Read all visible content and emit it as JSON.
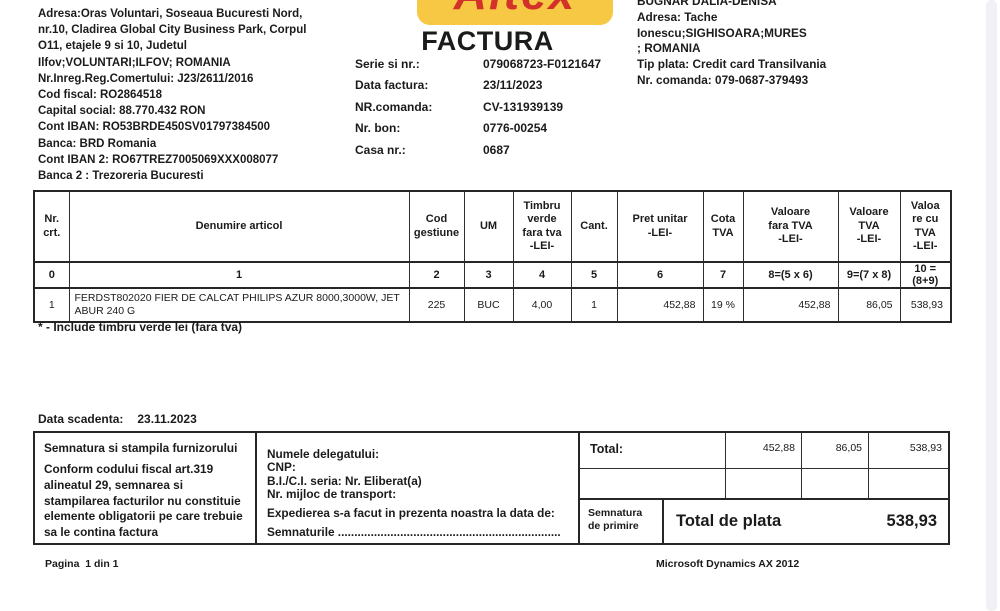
{
  "colors": {
    "logo_bg": "#F7C844",
    "logo_text": "#D23229",
    "scrollbar": "#f0f1f4",
    "text": "#1b1b1b",
    "border": "#262626"
  },
  "supplier": {
    "lines": [
      "Adresa:Oras Voluntari, Soseaua Bucuresti Nord,",
      "nr.10, Cladirea Global City Business Park, Corpul",
      "O11, etajele 9 si 10, Judetul",
      "Ilfov;VOLUNTARI;ILFOV; ROMANIA",
      "Nr.Inreg.Reg.Comertului: J23/2611/2016",
      "Cod fiscal: RO2864518",
      "Capital social: 88.770.432 RON",
      "Cont IBAN: RO53BRDE450SV01797384500",
      "Banca: BRD Romania",
      "Cont IBAN 2: RO67TREZ7005069XXX008077",
      "Banca 2 : Trezoreria Bucuresti"
    ]
  },
  "logo": {
    "text": "Altex"
  },
  "invoice": {
    "title": "FACTURA",
    "fields": [
      {
        "label": "Serie si nr.:",
        "value": "079068723-F0121647"
      },
      {
        "label": "Data factura:",
        "value": "23/11/2023"
      },
      {
        "label": "NR.comanda:",
        "value": "CV-131939139"
      },
      {
        "label": "Nr. bon:",
        "value": "0776-00254"
      },
      {
        "label": "Casa nr.:",
        "value": "0687"
      }
    ]
  },
  "customer": {
    "lines": [
      "BUGNAR DALIA-DENISA",
      "Adresa: Tache",
      "Ionescu;SIGHISOARA;MURES",
      "; ROMANIA",
      "Tip plata: Credit card Transilvania",
      "Nr. comanda: 079-0687-379493"
    ]
  },
  "items_table": {
    "headers": [
      [
        "Nr.",
        "crt."
      ],
      [
        "Denumire articol"
      ],
      [
        "Cod",
        "gestiune"
      ],
      [
        "UM"
      ],
      [
        "Timbru",
        "verde",
        "fara tva",
        "-LEI-"
      ],
      [
        "Cant."
      ],
      [
        "Pret unitar",
        "-LEI-"
      ],
      [
        "Cota",
        "TVA"
      ],
      [
        "Valoare",
        "fara TVA",
        "-LEI-"
      ],
      [
        "Valoare",
        "TVA",
        "-LEI-"
      ],
      [
        "Valoa",
        "re cu",
        "TVA",
        "-LEI-"
      ]
    ],
    "index_row": [
      "0",
      "1",
      "2",
      "3",
      "4",
      "5",
      "6",
      "7",
      "8=(5 x 6)",
      "9=(7 x 8)",
      "10 = (8+9)"
    ],
    "rows": [
      [
        "1",
        "FERDST802020 FIER DE CALCAT PHILIPS AZUR 8000,3000W, JET ABUR 240 G",
        "225",
        "BUC",
        "4,00",
        "1",
        "452,88",
        "19 %",
        "452,88",
        "86,05",
        "538,93"
      ]
    ]
  },
  "note": "* - Include timbru verde lei (fara tva)",
  "due_date": {
    "label": "Data scadenta:",
    "value": "23.11.2023"
  },
  "supplier_signature_box": {
    "title": "Semnatura si stampila furnizorului",
    "body": "Conform codului fiscal art.319 alineatul 29, semnarea si stampilarea facturilor nu constituie elemente obligatorii pe care trebuie sa le contina factura"
  },
  "delegate_box": {
    "lines": [
      "Numele delegatului:",
      "CNP:",
      "B.I./C.I. seria:  Nr.  Eliberat(a)",
      "Nr. mijloc de transport:",
      "Expedierea s-a facut in prezenta noastra la data de:",
      "Semnaturile ...................................................................."
    ]
  },
  "totals": {
    "label": "Total:",
    "values": [
      "452,88",
      "86,05",
      "538,93"
    ],
    "receive_signature_label": [
      "Semnatura",
      "de primire"
    ],
    "grand_total_label": "Total de plata",
    "grand_total_value": "538,93"
  },
  "footer": {
    "page_info": "Pagina  1 din 1",
    "app_name": "Microsoft Dynamics AX 2012"
  }
}
